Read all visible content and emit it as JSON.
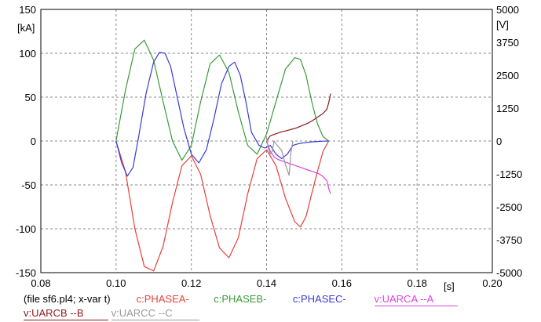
{
  "chart_data": {
    "type": "line",
    "xlabel": "[s]",
    "ylabel_left": "[kA]",
    "ylabel_right": "[V]",
    "xlim": [
      0.08,
      0.2
    ],
    "ylim_left": [
      -150,
      150
    ],
    "ylim_right": [
      -5000,
      5000
    ],
    "x_ticks": [
      "0.08",
      "0.10",
      "0.12",
      "0.14",
      "0.16",
      "0.18",
      "0.20"
    ],
    "y_ticks_left": [
      "150",
      "100",
      "50",
      "0",
      "-50",
      "-100",
      "-150"
    ],
    "y_ticks_right": [
      "5000",
      "3750",
      "2500",
      "1250",
      "0",
      "-1250",
      "-2500",
      "-3750",
      "-5000"
    ],
    "grid": true,
    "file_label": "(file sf6.pl4; x-var t)",
    "series": [
      {
        "name": "c:PHASEA-",
        "color": "#e8403a",
        "axis": "left",
        "x": [
          0.1,
          0.1025,
          0.105,
          0.1075,
          0.11,
          0.1125,
          0.115,
          0.1175,
          0.12,
          0.1225,
          0.125,
          0.1275,
          0.13,
          0.1325,
          0.135,
          0.1375,
          0.14,
          0.1425,
          0.145,
          0.1475,
          0.149,
          0.1505,
          0.152,
          0.1535,
          0.155,
          0.1565
        ],
        "values": [
          0,
          -35,
          -100,
          -143,
          -148,
          -120,
          -70,
          -28,
          -17,
          -38,
          -85,
          -122,
          -133,
          -110,
          -60,
          -20,
          -10,
          -28,
          -65,
          -92,
          -98,
          -86,
          -60,
          -35,
          -12,
          0
        ]
      },
      {
        "name": "c:PHASEB-",
        "color": "#3a9a3a",
        "axis": "left",
        "x": [
          0.1,
          0.1025,
          0.105,
          0.1075,
          0.11,
          0.1125,
          0.115,
          0.1175,
          0.12,
          0.1225,
          0.125,
          0.1275,
          0.13,
          0.1325,
          0.135,
          0.1375,
          0.14,
          0.1425,
          0.145,
          0.1475,
          0.149,
          0.1505,
          0.152,
          0.1535,
          0.155,
          0.1565
        ],
        "values": [
          0,
          58,
          105,
          115,
          92,
          45,
          0,
          -22,
          -5,
          45,
          88,
          98,
          78,
          33,
          -5,
          -15,
          8,
          45,
          82,
          95,
          93,
          75,
          45,
          20,
          5,
          0
        ]
      },
      {
        "name": "c:PHASEC-",
        "color": "#3a3ad8",
        "axis": "left",
        "x": [
          0.1,
          0.1015,
          0.103,
          0.1045,
          0.106,
          0.108,
          0.11,
          0.1115,
          0.113,
          0.1145,
          0.116,
          0.118,
          0.12,
          0.122,
          0.124,
          0.126,
          0.128,
          0.13,
          0.1315,
          0.133,
          0.1345,
          0.136,
          0.138,
          0.1395,
          0.141,
          0.1425,
          0.144,
          0.1455,
          0.147,
          0.1485,
          0.15,
          0.152,
          0.1535,
          0.155,
          0.1565
        ],
        "values": [
          0,
          -25,
          -40,
          -30,
          5,
          55,
          90,
          101,
          100,
          85,
          55,
          15,
          -15,
          -25,
          -10,
          25,
          65,
          85,
          90,
          75,
          45,
          10,
          -5,
          -8,
          -5,
          -15,
          -20,
          -15,
          -5,
          -3,
          -2,
          -1,
          -0.5,
          -0.2,
          0
        ]
      },
      {
        "name": "v:UARCA --A",
        "color": "#e040e0",
        "axis": "right",
        "x": [
          0.14,
          0.141,
          0.142,
          0.143,
          0.144,
          0.145,
          0.146,
          0.147,
          0.148,
          0.149,
          0.15,
          0.151,
          0.152,
          0.153,
          0.154,
          0.155,
          0.156,
          0.1565,
          0.157
        ],
        "values": [
          0,
          -400,
          -600,
          -700,
          -750,
          -800,
          -850,
          -900,
          -950,
          -1000,
          -1050,
          -1100,
          -1150,
          -1200,
          -1250,
          -1350,
          -1500,
          -1800,
          -2000
        ]
      },
      {
        "name": "v:UARCB --B",
        "color": "#8b1a1a",
        "axis": "right",
        "x": [
          0.14,
          0.141,
          0.142,
          0.143,
          0.144,
          0.145,
          0.146,
          0.147,
          0.148,
          0.149,
          0.15,
          0.151,
          0.152,
          0.153,
          0.154,
          0.155,
          0.156,
          0.1565,
          0.157
        ],
        "values": [
          0,
          200,
          250,
          300,
          350,
          380,
          420,
          460,
          500,
          560,
          620,
          680,
          760,
          850,
          950,
          1050,
          1200,
          1450,
          1800
        ]
      },
      {
        "name": "v:UARCC --C",
        "color": "#999999",
        "axis": "right",
        "x": [
          0.14,
          0.1405,
          0.141,
          0.1415,
          0.142,
          0.143,
          0.144,
          0.145,
          0.1455,
          0.146,
          0.1465,
          0.147
        ],
        "values": [
          100,
          -300,
          -500,
          -400,
          0,
          -200,
          -350,
          -900,
          -1100,
          -1300,
          -400,
          0
        ]
      }
    ]
  }
}
